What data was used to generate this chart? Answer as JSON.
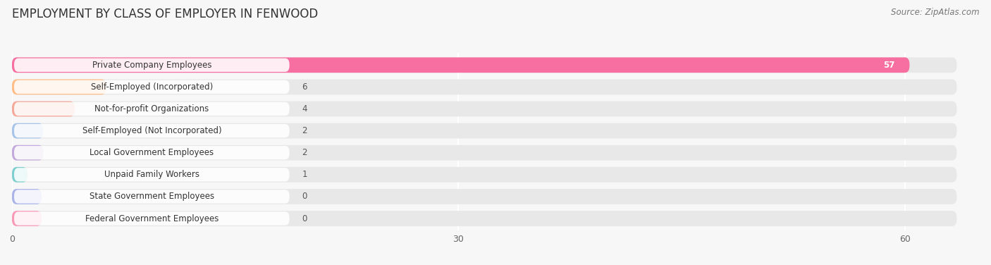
{
  "title": "EMPLOYMENT BY CLASS OF EMPLOYER IN FENWOOD",
  "source": "Source: ZipAtlas.com",
  "categories": [
    "Private Company Employees",
    "Self-Employed (Incorporated)",
    "Not-for-profit Organizations",
    "Self-Employed (Not Incorporated)",
    "Local Government Employees",
    "Unpaid Family Workers",
    "State Government Employees",
    "Federal Government Employees"
  ],
  "values": [
    57,
    6,
    4,
    2,
    2,
    1,
    0,
    0
  ],
  "bar_colors": [
    "#F76FA0",
    "#FFBD88",
    "#F4A99A",
    "#A8C4E8",
    "#C4AADC",
    "#7ECFCF",
    "#AAB4E8",
    "#F999B8"
  ],
  "xlim": [
    0,
    65
  ],
  "xticks": [
    0,
    30,
    60
  ],
  "background_color": "#f7f7f7",
  "bar_background_color": "#e8e8e8",
  "title_fontsize": 12,
  "label_fontsize": 8.5,
  "value_fontsize": 8.5,
  "source_fontsize": 8.5
}
